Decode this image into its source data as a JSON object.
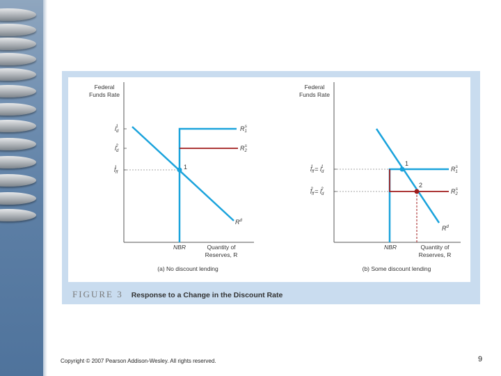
{
  "caption": {
    "label": "FIGURE 3",
    "title": "Response to a Change in the Discount Rate"
  },
  "panel_a": {
    "y_axis_title_1": "Federal",
    "y_axis_title_2": "Funds Rate",
    "x_axis_title_1": "Quantity of",
    "x_axis_title_2": "Reserves, R",
    "nbr": "NBR",
    "subtitle": "(a) No discount lending",
    "y_ticks": {
      "t1_base": "i",
      "t1_sub": "d",
      "t1_sup": "1",
      "t2_base": "i",
      "t2_sub": "d",
      "t2_sup": "2",
      "t3_base": "i",
      "t3_sub": "ff",
      "t3_sup": "1"
    },
    "curves": {
      "supply1_base": "R",
      "supply1_sub": "1",
      "supply1_sup": "s",
      "supply2_base": "R",
      "supply2_sub": "2",
      "supply2_sup": "s",
      "demand_base": "R",
      "demand_sup": "d"
    },
    "point": "1"
  },
  "panel_b": {
    "y_axis_title_1": "Federal",
    "y_axis_title_2": "Funds Rate",
    "x_axis_title_1": "Quantity of",
    "x_axis_title_2": "Reserves, R",
    "nbr": "NBR",
    "subtitle": "(b) Some discount lending",
    "y_ticks": {
      "eq1_a_base": "i",
      "eq1_a_sub": "ff",
      "eq1_a_sup": "1",
      "eq1_sep": " = ",
      "eq1_b_base": "i",
      "eq1_b_sub": "d",
      "eq1_b_sup": "1",
      "eq2_a_base": "i",
      "eq2_a_sub": "ff",
      "eq2_a_sup": "2",
      "eq2_sep": " = ",
      "eq2_b_base": "i",
      "eq2_b_sub": "d",
      "eq2_b_sup": "2"
    },
    "curves": {
      "supply1_base": "R",
      "supply1_sub": "1",
      "supply1_sup": "s",
      "supply2_base": "R",
      "supply2_sub": "2",
      "supply2_sup": "s",
      "demand_base": "R",
      "demand_sup": "d"
    },
    "point1": "1",
    "point2": "2"
  },
  "colors": {
    "blue": "#1aa3dc",
    "red": "#a01b1b",
    "frame": "#c9dcef"
  },
  "footer": {
    "copyright": "Copyright © 2007 Pearson Addison-Wesley. All rights reserved.",
    "page": "9"
  }
}
